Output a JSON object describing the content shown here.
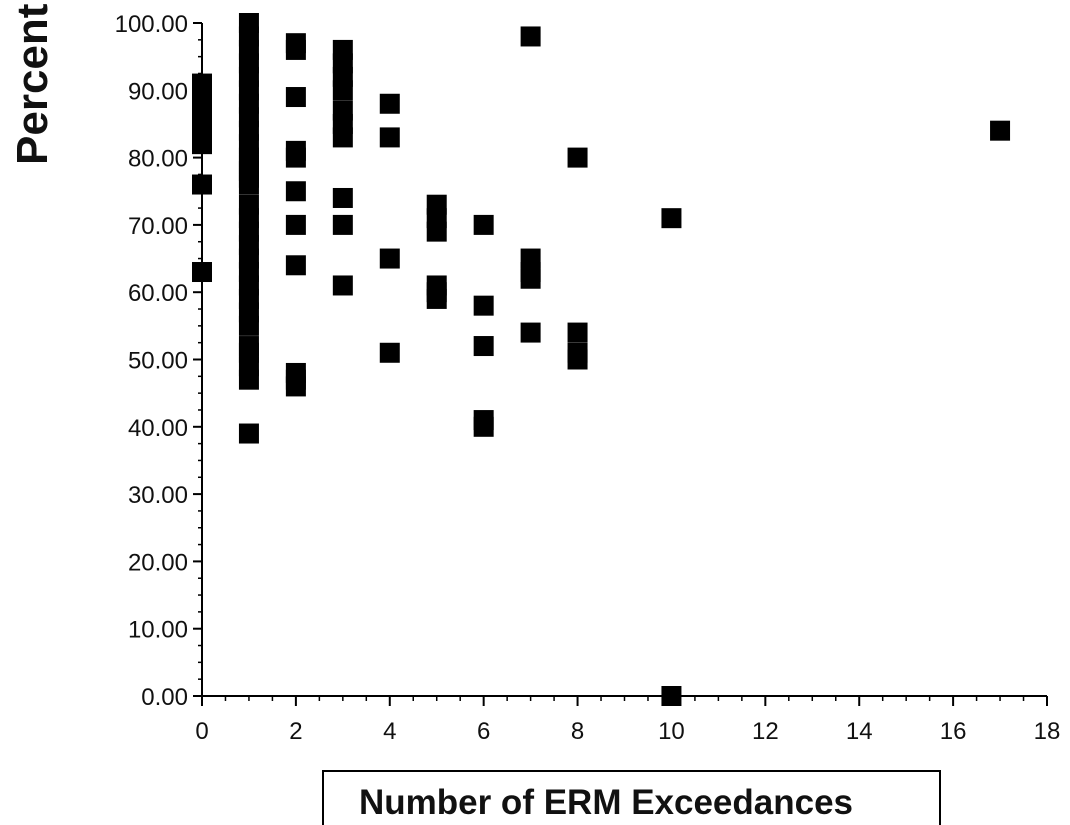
{
  "chart_data": {
    "type": "scatter",
    "title": "",
    "xlabel": "Number of ERM Exceedances",
    "ylabel": "Percent",
    "xlim": [
      0,
      18
    ],
    "ylim": [
      0,
      100
    ],
    "x_ticks": [
      0,
      2,
      4,
      6,
      8,
      10,
      12,
      14,
      16,
      18
    ],
    "x_tick_labels": [
      "0",
      "2",
      "4",
      "6",
      "8",
      "10",
      "12",
      "14",
      "16",
      "18"
    ],
    "y_ticks": [
      0,
      10,
      20,
      30,
      40,
      50,
      60,
      70,
      80,
      90,
      100
    ],
    "y_tick_labels": [
      "0.00",
      "10.00",
      "20.00",
      "30.00",
      "40.00",
      "50.00",
      "60.00",
      "70.00",
      "80.00",
      "90.00",
      "100.00"
    ],
    "grid": false,
    "legend": "none",
    "marker": "square",
    "marker_color": "#000000",
    "series": [
      {
        "x": [
          0,
          0,
          0,
          0,
          0,
          0,
          0,
          0,
          1,
          1,
          1,
          1,
          1,
          1,
          1,
          1,
          1,
          1,
          1,
          1,
          1,
          1,
          1,
          1,
          1,
          1,
          1,
          1,
          1,
          1,
          1,
          1,
          1,
          1,
          1,
          1,
          1,
          1,
          2,
          2,
          2,
          2,
          2,
          2,
          2,
          2,
          2,
          2,
          2,
          3,
          3,
          3,
          3,
          3,
          3,
          3,
          3,
          3,
          3,
          4,
          4,
          4,
          4,
          5,
          5,
          5,
          5,
          5,
          5,
          6,
          6,
          6,
          6,
          6,
          7,
          7,
          7,
          7,
          7,
          8,
          8,
          8,
          8,
          10,
          10,
          17
        ],
        "y": [
          91,
          88,
          86,
          84,
          82,
          76,
          63,
          90,
          100,
          98,
          96,
          94,
          92,
          90,
          88,
          86,
          84,
          82,
          80,
          78,
          76,
          73,
          71,
          69,
          67,
          65,
          63,
          61,
          59,
          57,
          55,
          51,
          49,
          47,
          39,
          79,
          77,
          52,
          97,
          96,
          89,
          81,
          80,
          75,
          70,
          64,
          48,
          46,
          47,
          96,
          94,
          92,
          87,
          85,
          83,
          74,
          70,
          61,
          90,
          88,
          83,
          65,
          51,
          73,
          71,
          69,
          61,
          59,
          60,
          70,
          58,
          52,
          40,
          41,
          98,
          65,
          63,
          62,
          54,
          80,
          54,
          50,
          51,
          71,
          0,
          84
        ]
      }
    ]
  }
}
